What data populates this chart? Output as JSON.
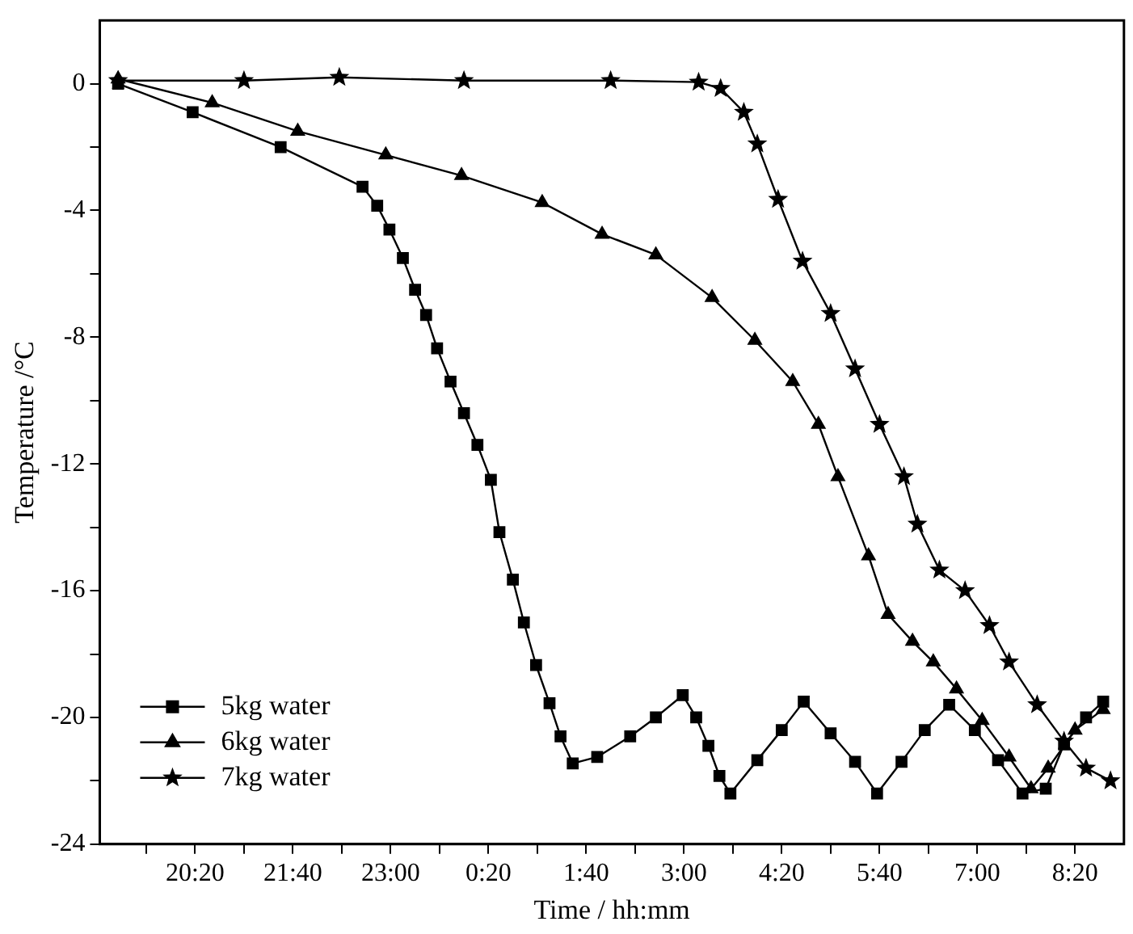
{
  "chart_data": {
    "type": "line",
    "xlabel": "Time / hh:mm",
    "ylabel": "Temperature /°C",
    "xlim": [
      "2000-01-01T19:02",
      "2000-01-02T09:00"
    ],
    "ylim": [
      -24,
      2
    ],
    "xticks": [
      {
        "value": "2000-01-01T19:40",
        "label": null
      },
      {
        "value": "2000-01-01T20:20",
        "label": "20:20"
      },
      {
        "value": "2000-01-01T21:00",
        "label": null
      },
      {
        "value": "2000-01-01T21:40",
        "label": "21:40"
      },
      {
        "value": "2000-01-01T22:20",
        "label": null
      },
      {
        "value": "2000-01-01T23:00",
        "label": "23:00"
      },
      {
        "value": "2000-01-01T23:40",
        "label": null
      },
      {
        "value": "2000-01-02T00:20",
        "label": "0:20"
      },
      {
        "value": "2000-01-02T01:00",
        "label": null
      },
      {
        "value": "2000-01-02T01:40",
        "label": "1:40"
      },
      {
        "value": "2000-01-02T02:20",
        "label": null
      },
      {
        "value": "2000-01-02T03:00",
        "label": "3:00"
      },
      {
        "value": "2000-01-02T03:40",
        "label": null
      },
      {
        "value": "2000-01-02T04:20",
        "label": "4:20"
      },
      {
        "value": "2000-01-02T05:00",
        "label": null
      },
      {
        "value": "2000-01-02T05:40",
        "label": "5:40"
      },
      {
        "value": "2000-01-02T06:20",
        "label": null
      },
      {
        "value": "2000-01-02T07:00",
        "label": "7:00"
      },
      {
        "value": "2000-01-02T07:40",
        "label": null
      },
      {
        "value": "2000-01-02T08:20",
        "label": "8:20"
      }
    ],
    "yticks": [
      0,
      {
        "value": -2,
        "label": null
      },
      -4,
      {
        "value": -6,
        "label": null
      },
      -8,
      {
        "value": -10,
        "label": null
      },
      -12,
      {
        "value": -14,
        "label": null
      },
      -16,
      {
        "value": -18,
        "label": null
      },
      -20,
      {
        "value": -22,
        "label": null
      },
      -24
    ],
    "grid": false,
    "legend": "bottom left",
    "line_style": "solid",
    "series": [
      {
        "name": "5kg water",
        "color": "#000000",
        "marker": "square",
        "x": [
          "2000-01-01T19:17",
          "2000-01-01T20:18",
          "2000-01-01T21:30",
          "2000-01-01T22:37",
          "2000-01-01T22:49",
          "2000-01-01T22:59",
          "2000-01-01T23:10",
          "2000-01-01T23:20",
          "2000-01-01T23:29",
          "2000-01-01T23:38",
          "2000-01-01T23:49",
          "2000-01-02T00:00",
          "2000-01-02T00:11",
          "2000-01-02T00:22",
          "2000-01-02T00:29",
          "2000-01-02T00:40",
          "2000-01-02T00:49",
          "2000-01-02T00:59",
          "2000-01-02T01:10",
          "2000-01-02T01:19",
          "2000-01-02T01:29",
          "2000-01-02T01:49",
          "2000-01-02T02:16",
          "2000-01-02T02:37",
          "2000-01-02T02:59",
          "2000-01-02T03:10",
          "2000-01-02T03:20",
          "2000-01-02T03:29",
          "2000-01-02T03:38",
          "2000-01-02T04:00",
          "2000-01-02T04:20",
          "2000-01-02T04:38",
          "2000-01-02T05:00",
          "2000-01-02T05:20",
          "2000-01-02T05:38",
          "2000-01-02T05:58",
          "2000-01-02T06:17",
          "2000-01-02T06:37",
          "2000-01-02T06:58",
          "2000-01-02T07:17",
          "2000-01-02T07:37",
          "2000-01-02T07:56",
          "2000-01-02T08:11",
          "2000-01-02T08:29",
          "2000-01-02T08:43"
        ],
        "values": [
          0,
          -0.9,
          -2.0,
          -3.25,
          -3.85,
          -4.6,
          -5.5,
          -6.5,
          -7.3,
          -8.35,
          -9.4,
          -10.4,
          -11.4,
          -12.5,
          -14.15,
          -15.65,
          -17.0,
          -18.35,
          -19.55,
          -20.6,
          -21.45,
          -21.25,
          -20.6,
          -20.0,
          -19.3,
          -20.0,
          -20.9,
          -21.85,
          -22.4,
          -21.35,
          -20.4,
          -19.5,
          -20.5,
          -21.4,
          -22.4,
          -21.4,
          -20.4,
          -19.6,
          -20.4,
          -21.35,
          -22.4,
          -22.25,
          -20.85,
          -20.0,
          -19.5
        ]
      },
      {
        "name": "6kg water",
        "color": "#000000",
        "marker": "triangle",
        "x": [
          "2000-01-01T19:17",
          "2000-01-01T20:34",
          "2000-01-01T21:44",
          "2000-01-01T22:56",
          "2000-01-01T23:58",
          "2000-01-02T01:04",
          "2000-01-02T01:53",
          "2000-01-02T02:37",
          "2000-01-02T03:23",
          "2000-01-02T03:58",
          "2000-01-02T04:29",
          "2000-01-02T04:50",
          "2000-01-02T05:06",
          "2000-01-02T05:31",
          "2000-01-02T05:47",
          "2000-01-02T06:07",
          "2000-01-02T06:24",
          "2000-01-02T06:43",
          "2000-01-02T07:04",
          "2000-01-02T07:26",
          "2000-01-02T07:44",
          "2000-01-02T07:58",
          "2000-01-02T08:20",
          "2000-01-02T08:43"
        ],
        "values": [
          0.15,
          -0.6,
          -1.5,
          -2.25,
          -2.9,
          -3.75,
          -4.75,
          -5.4,
          -6.75,
          -8.1,
          -9.4,
          -10.75,
          -12.4,
          -14.9,
          -16.75,
          -17.6,
          -18.25,
          -19.1,
          -20.1,
          -21.25,
          -22.25,
          -21.6,
          -20.4,
          -19.75
        ]
      },
      {
        "name": "7kg water",
        "color": "#000000",
        "marker": "star",
        "x": [
          "2000-01-01T19:17",
          "2000-01-01T21:00",
          "2000-01-01T22:18",
          "2000-01-02T00:00",
          "2000-01-02T02:00",
          "2000-01-02T03:12",
          "2000-01-02T03:30",
          "2000-01-02T03:49",
          "2000-01-02T04:00",
          "2000-01-02T04:17",
          "2000-01-02T04:37",
          "2000-01-02T05:00",
          "2000-01-02T05:20",
          "2000-01-02T05:40",
          "2000-01-02T06:00",
          "2000-01-02T06:11",
          "2000-01-02T06:29",
          "2000-01-02T06:50",
          "2000-01-02T07:10",
          "2000-01-02T07:26",
          "2000-01-02T07:49",
          "2000-01-02T08:11",
          "2000-01-02T08:29",
          "2000-01-02T08:49"
        ],
        "values": [
          0.1,
          0.1,
          0.2,
          0.1,
          0.1,
          0.05,
          -0.15,
          -0.9,
          -1.9,
          -3.65,
          -5.6,
          -7.25,
          -9.0,
          -10.75,
          -12.4,
          -13.9,
          -15.35,
          -16.0,
          -17.1,
          -18.25,
          -19.6,
          -20.75,
          -21.6,
          -22.0
        ]
      }
    ]
  }
}
